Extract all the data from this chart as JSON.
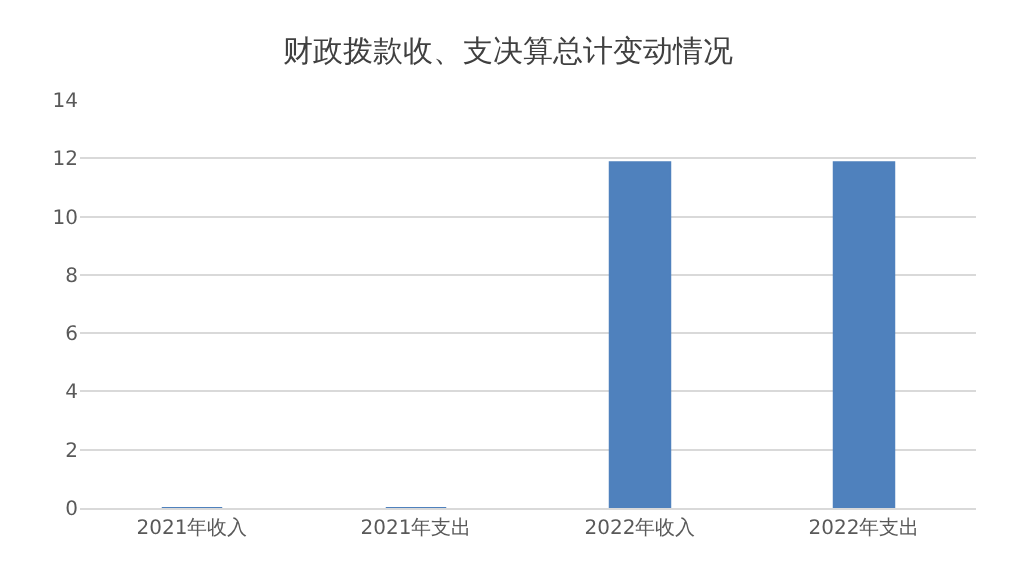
{
  "chart_data": {
    "type": "bar",
    "title": "财政拨款收、支决算总计变动情况",
    "categories": [
      "2021年收入",
      "2021年支出",
      "2022年收入",
      "2022年支出"
    ],
    "values": [
      0,
      0,
      11.86,
      11.86
    ],
    "color": "#4f81bd",
    "ylim": [
      0,
      14
    ],
    "yticks": [
      0,
      2,
      4,
      6,
      8,
      10,
      12,
      14
    ],
    "grid": "y"
  }
}
